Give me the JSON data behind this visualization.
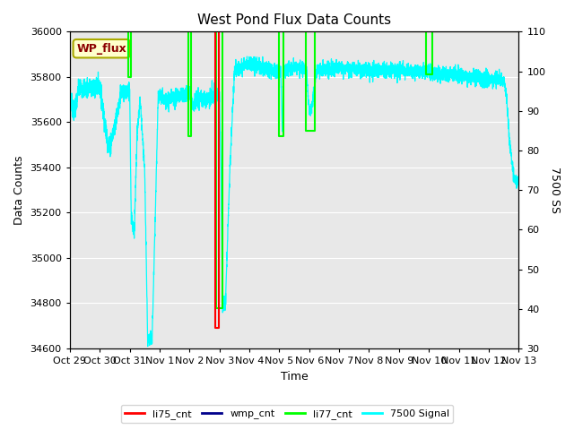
{
  "title": "West Pond Flux Data Counts",
  "xlabel": "Time",
  "ylabel_left": "Data Counts",
  "ylabel_right": "7500 SS",
  "ylim_left": [
    34600,
    36000
  ],
  "ylim_right": [
    30,
    110
  ],
  "plot_bg_color": "#e8e8e8",
  "fig_bg_color": "#ffffff",
  "annotation_text": "WP_flux",
  "annotation_bg": "#ffffcc",
  "annotation_border": "#aaaa00",
  "annotation_text_color": "#8b0000",
  "x_ticks": [
    "Oct 29",
    "Oct 30",
    "Oct 31",
    "Nov 1",
    "Nov 2",
    "Nov 3",
    "Nov 4",
    "Nov 5",
    "Nov 6",
    "Nov 7",
    "Nov 8",
    "Nov 9",
    "Nov 10",
    "Nov 11",
    "Nov 12",
    "Nov 13"
  ],
  "legend_entries": [
    "li75_cnt",
    "wmp_cnt",
    "li77_cnt",
    "7500 Signal"
  ],
  "legend_colors": [
    "red",
    "darkblue",
    "lime",
    "cyan"
  ],
  "grid_color": "#ffffff",
  "grid_alpha": 1.0,
  "cyan_base": 35760,
  "cyan_noise": 18,
  "cyan_mid_base": 35850,
  "cyan_mid_noise": 18
}
